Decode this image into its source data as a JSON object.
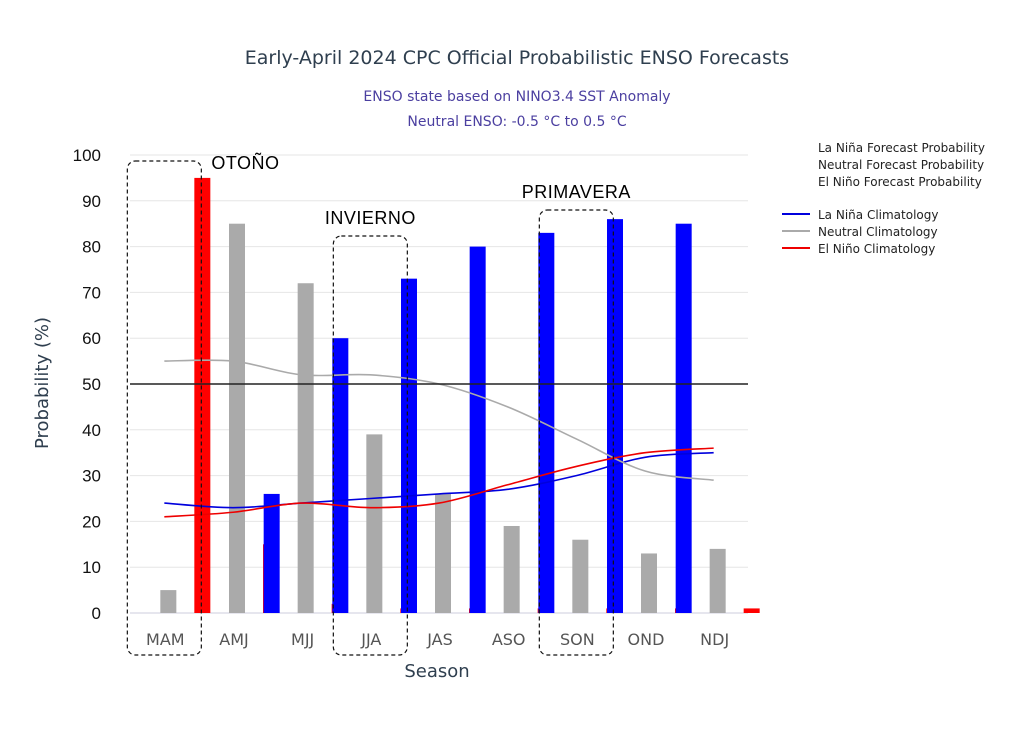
{
  "chart_data": {
    "type": "bar",
    "title": "Early-April 2024 CPC Official Probabilistic ENSO Forecasts",
    "subtitle_1": "ENSO state based on NINO3.4 SST Anomaly",
    "subtitle_2": "Neutral ENSO: -0.5 °C to 0.5 °C",
    "xlabel": "Season",
    "ylabel": "Probability (%)",
    "ylim": [
      0,
      100
    ],
    "yticks": [
      0,
      10,
      20,
      30,
      40,
      50,
      60,
      70,
      80,
      90,
      100
    ],
    "grid": true,
    "reference_line": 50,
    "categories": [
      "MAM",
      "AMJ",
      "MJJ",
      "JJA",
      "JAS",
      "ASO",
      "SON",
      "OND",
      "NDJ"
    ],
    "series": [
      {
        "name": "La Niña Forecast Probability",
        "kind": "bar",
        "color": "#0000ff",
        "values": [
          0,
          0,
          26,
          60,
          73,
          80,
          83,
          86,
          85
        ]
      },
      {
        "name": "Neutral Forecast Probability",
        "kind": "bar",
        "color": "#aaaaaa",
        "values": [
          5,
          85,
          72,
          39,
          26,
          19,
          16,
          13,
          14
        ]
      },
      {
        "name": "El Niño Forecast Probability",
        "kind": "bar",
        "color": "#ff0000",
        "values": [
          95,
          15,
          2,
          1,
          1,
          1,
          1,
          1,
          1
        ]
      },
      {
        "name": "La Niña Climatology",
        "kind": "line",
        "color": "#0000dd",
        "values": [
          24,
          23,
          24,
          25,
          26,
          27,
          30,
          34,
          35
        ]
      },
      {
        "name": "Neutral Climatology",
        "kind": "line",
        "color": "#aaaaaa",
        "values": [
          55,
          55,
          52,
          52,
          50,
          45,
          38,
          31,
          29
        ]
      },
      {
        "name": "El Niño Climatology",
        "kind": "line",
        "color": "#ee0000",
        "values": [
          21,
          22,
          24,
          23,
          24,
          28,
          32,
          35,
          36
        ]
      }
    ],
    "legend_position": "right",
    "annotations": [
      {
        "text": "OTOÑO",
        "categories": [
          "MAM"
        ]
      },
      {
        "text": "INVIERNO",
        "categories": [
          "JJA"
        ]
      },
      {
        "text": "PRIMAVERA",
        "categories": [
          "SON"
        ]
      }
    ]
  }
}
